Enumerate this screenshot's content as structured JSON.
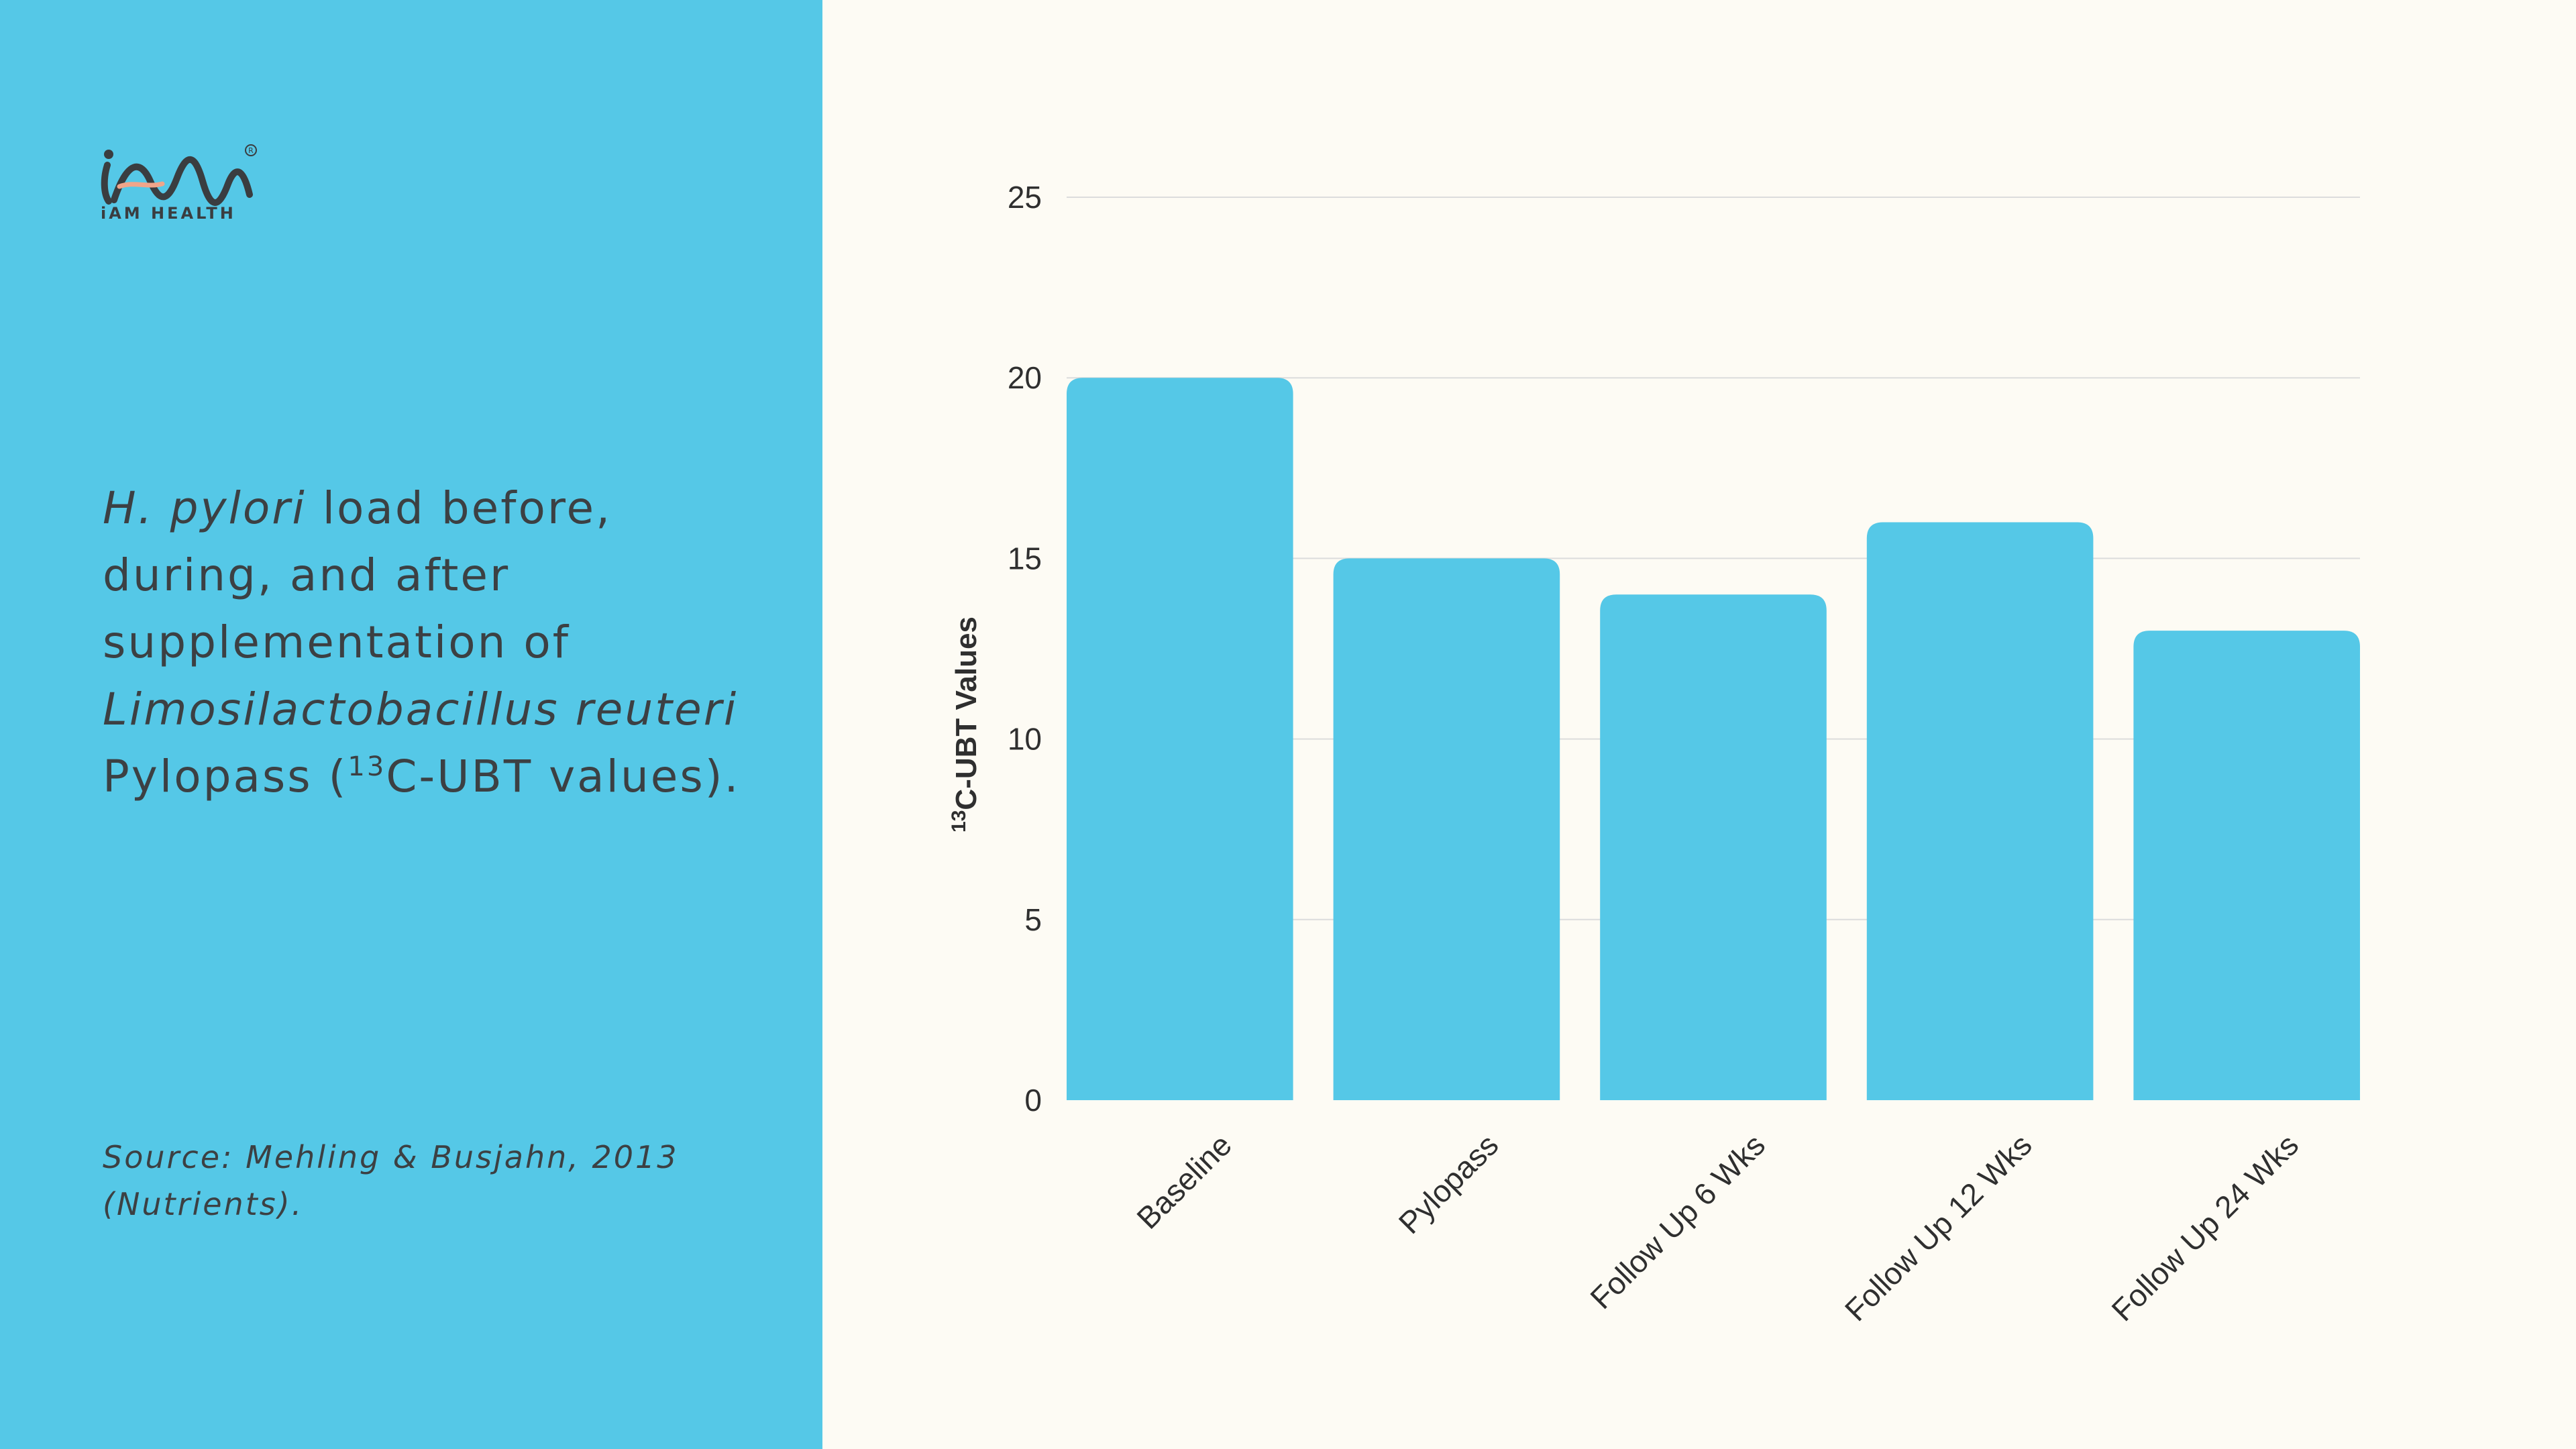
{
  "brand": {
    "name": "iAM HEALTH",
    "registered": "®"
  },
  "caption": {
    "italic_1": "H. pylori",
    "text_1": " load before, during, and after supplementation of ",
    "italic_2": "Limosilactobacillus reuteri",
    "text_2": " Pylopass (",
    "superscript": "13",
    "text_3": "C-UBT values)."
  },
  "source": "Source: Mehling & Busjahn, 2013 (Nutrients).",
  "colors": {
    "panel": "#55c8e7",
    "bar": "#55c8e7",
    "background": "#fdfbf4",
    "text": "#3c4043",
    "grid": "#dcdcdc"
  },
  "chart_data": {
    "type": "bar",
    "categories": [
      "Baseline",
      "Pylopass",
      "Follow Up 6 Wks",
      "Follow Up 12 Wks",
      "Follow Up 24 Wks"
    ],
    "values": [
      20,
      15,
      14,
      16,
      13
    ],
    "title": "",
    "xlabel": "",
    "ylabel_superscript": "13",
    "ylabel": "C-UBT Values",
    "ylim": [
      0,
      25
    ],
    "yticks": [
      0,
      5,
      10,
      15,
      20,
      25
    ],
    "grid": true,
    "legend": "none"
  }
}
